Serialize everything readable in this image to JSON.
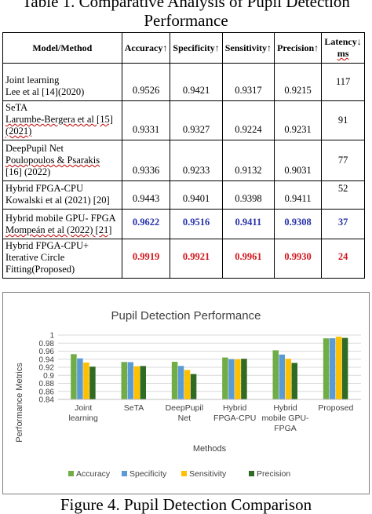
{
  "table": {
    "title_line1": "Table 1. Comparative Analysis of Pupil Detection",
    "title_line2": "Performance",
    "headers": [
      "Model/Method",
      "Accuracy↑",
      "Specificity↑",
      "Sensitivity↑",
      "Precision↑",
      "Latency↓",
      "ms"
    ],
    "rows": [
      {
        "line1": "Joint learning",
        "line2": "Lee et al [14](2020)",
        "line3": "",
        "accuracy": "0.9526",
        "specificity": "0.9421",
        "sensitivity": "0.9317",
        "precision": "0.9215",
        "latency": "117"
      },
      {
        "line1": "SeTA",
        "line2": "Larumbe-Bergera et al [15](2021)",
        "line3": "",
        "accuracy": "0.9331",
        "specificity": "0.9327",
        "sensitivity": "0.9224",
        "precision": "0.9231",
        "latency": "91"
      },
      {
        "line1": "DeepPupil Net",
        "line2": "Poulopoulos & Psarakis",
        "line3": "[16] (2022)",
        "accuracy": "0.9336",
        "specificity": "0.9233",
        "sensitivity": "0.9132",
        "precision": "0.9031",
        "latency": "77"
      },
      {
        "line1": "Hybrid FPGA-CPU",
        "line2": "Kowalski et al (2021) [20]",
        "line3": "",
        "accuracy": "0.9443",
        "specificity": "0.9401",
        "sensitivity": "0.9398",
        "precision": "0.9411",
        "latency": "52"
      },
      {
        "line1": "Hybrid mobile GPU- FPGA",
        "line2": "Mompeán et al (2022) [21]",
        "line3": "",
        "accuracy": "0.9622",
        "specificity": "0.9516",
        "sensitivity": "0.9411",
        "precision": "0.9308",
        "latency": "37"
      },
      {
        "line1": "Hybrid FPGA-CPU+ Iterative Circle",
        "line2": "Fitting(Proposed)",
        "line3": "",
        "accuracy": "0.9919",
        "specificity": "0.9921",
        "sensitivity": "0.9961",
        "precision": "0.9930",
        "latency": "24"
      }
    ],
    "highlight_colors": {
      "blue": "#2732a8",
      "red": "#d0161c"
    }
  },
  "chart_data": {
    "type": "bar",
    "title": "Pupil Detection Performance",
    "xlabel": "Methods",
    "ylabel": "Performance Metrics",
    "ylim": [
      0.84,
      1.0
    ],
    "yticks": [
      "0.84",
      "0.86",
      "0.88",
      "0.9",
      "0.92",
      "0.94",
      "0.96",
      "0.98",
      "1"
    ],
    "categories": [
      [
        "Joint",
        "learning"
      ],
      [
        "SeTA"
      ],
      [
        "DeepPupil",
        "Net"
      ],
      [
        "Hybrid",
        "FPGA-CPU"
      ],
      [
        "Hybrid",
        "mobile GPU-",
        "FPGA"
      ],
      [
        "Proposed"
      ]
    ],
    "series": [
      {
        "name": "Accuracy",
        "color": "#70ad47",
        "values": [
          0.9526,
          0.9331,
          0.9336,
          0.9443,
          0.9622,
          0.9919
        ]
      },
      {
        "name": "Specificity",
        "color": "#5b9bd5",
        "values": [
          0.9421,
          0.9327,
          0.9233,
          0.9401,
          0.9516,
          0.9921
        ]
      },
      {
        "name": "Sensitivity",
        "color": "#ffc000",
        "values": [
          0.9317,
          0.9224,
          0.9132,
          0.9398,
          0.9411,
          0.9961
        ]
      },
      {
        "name": "Precision",
        "color": "#2f6b22",
        "values": [
          0.9215,
          0.9231,
          0.9031,
          0.9411,
          0.9308,
          0.993
        ]
      }
    ],
    "grid": true,
    "legend_position": "bottom"
  },
  "figure_caption": "Figure 4. Pupil Detection Comparison"
}
